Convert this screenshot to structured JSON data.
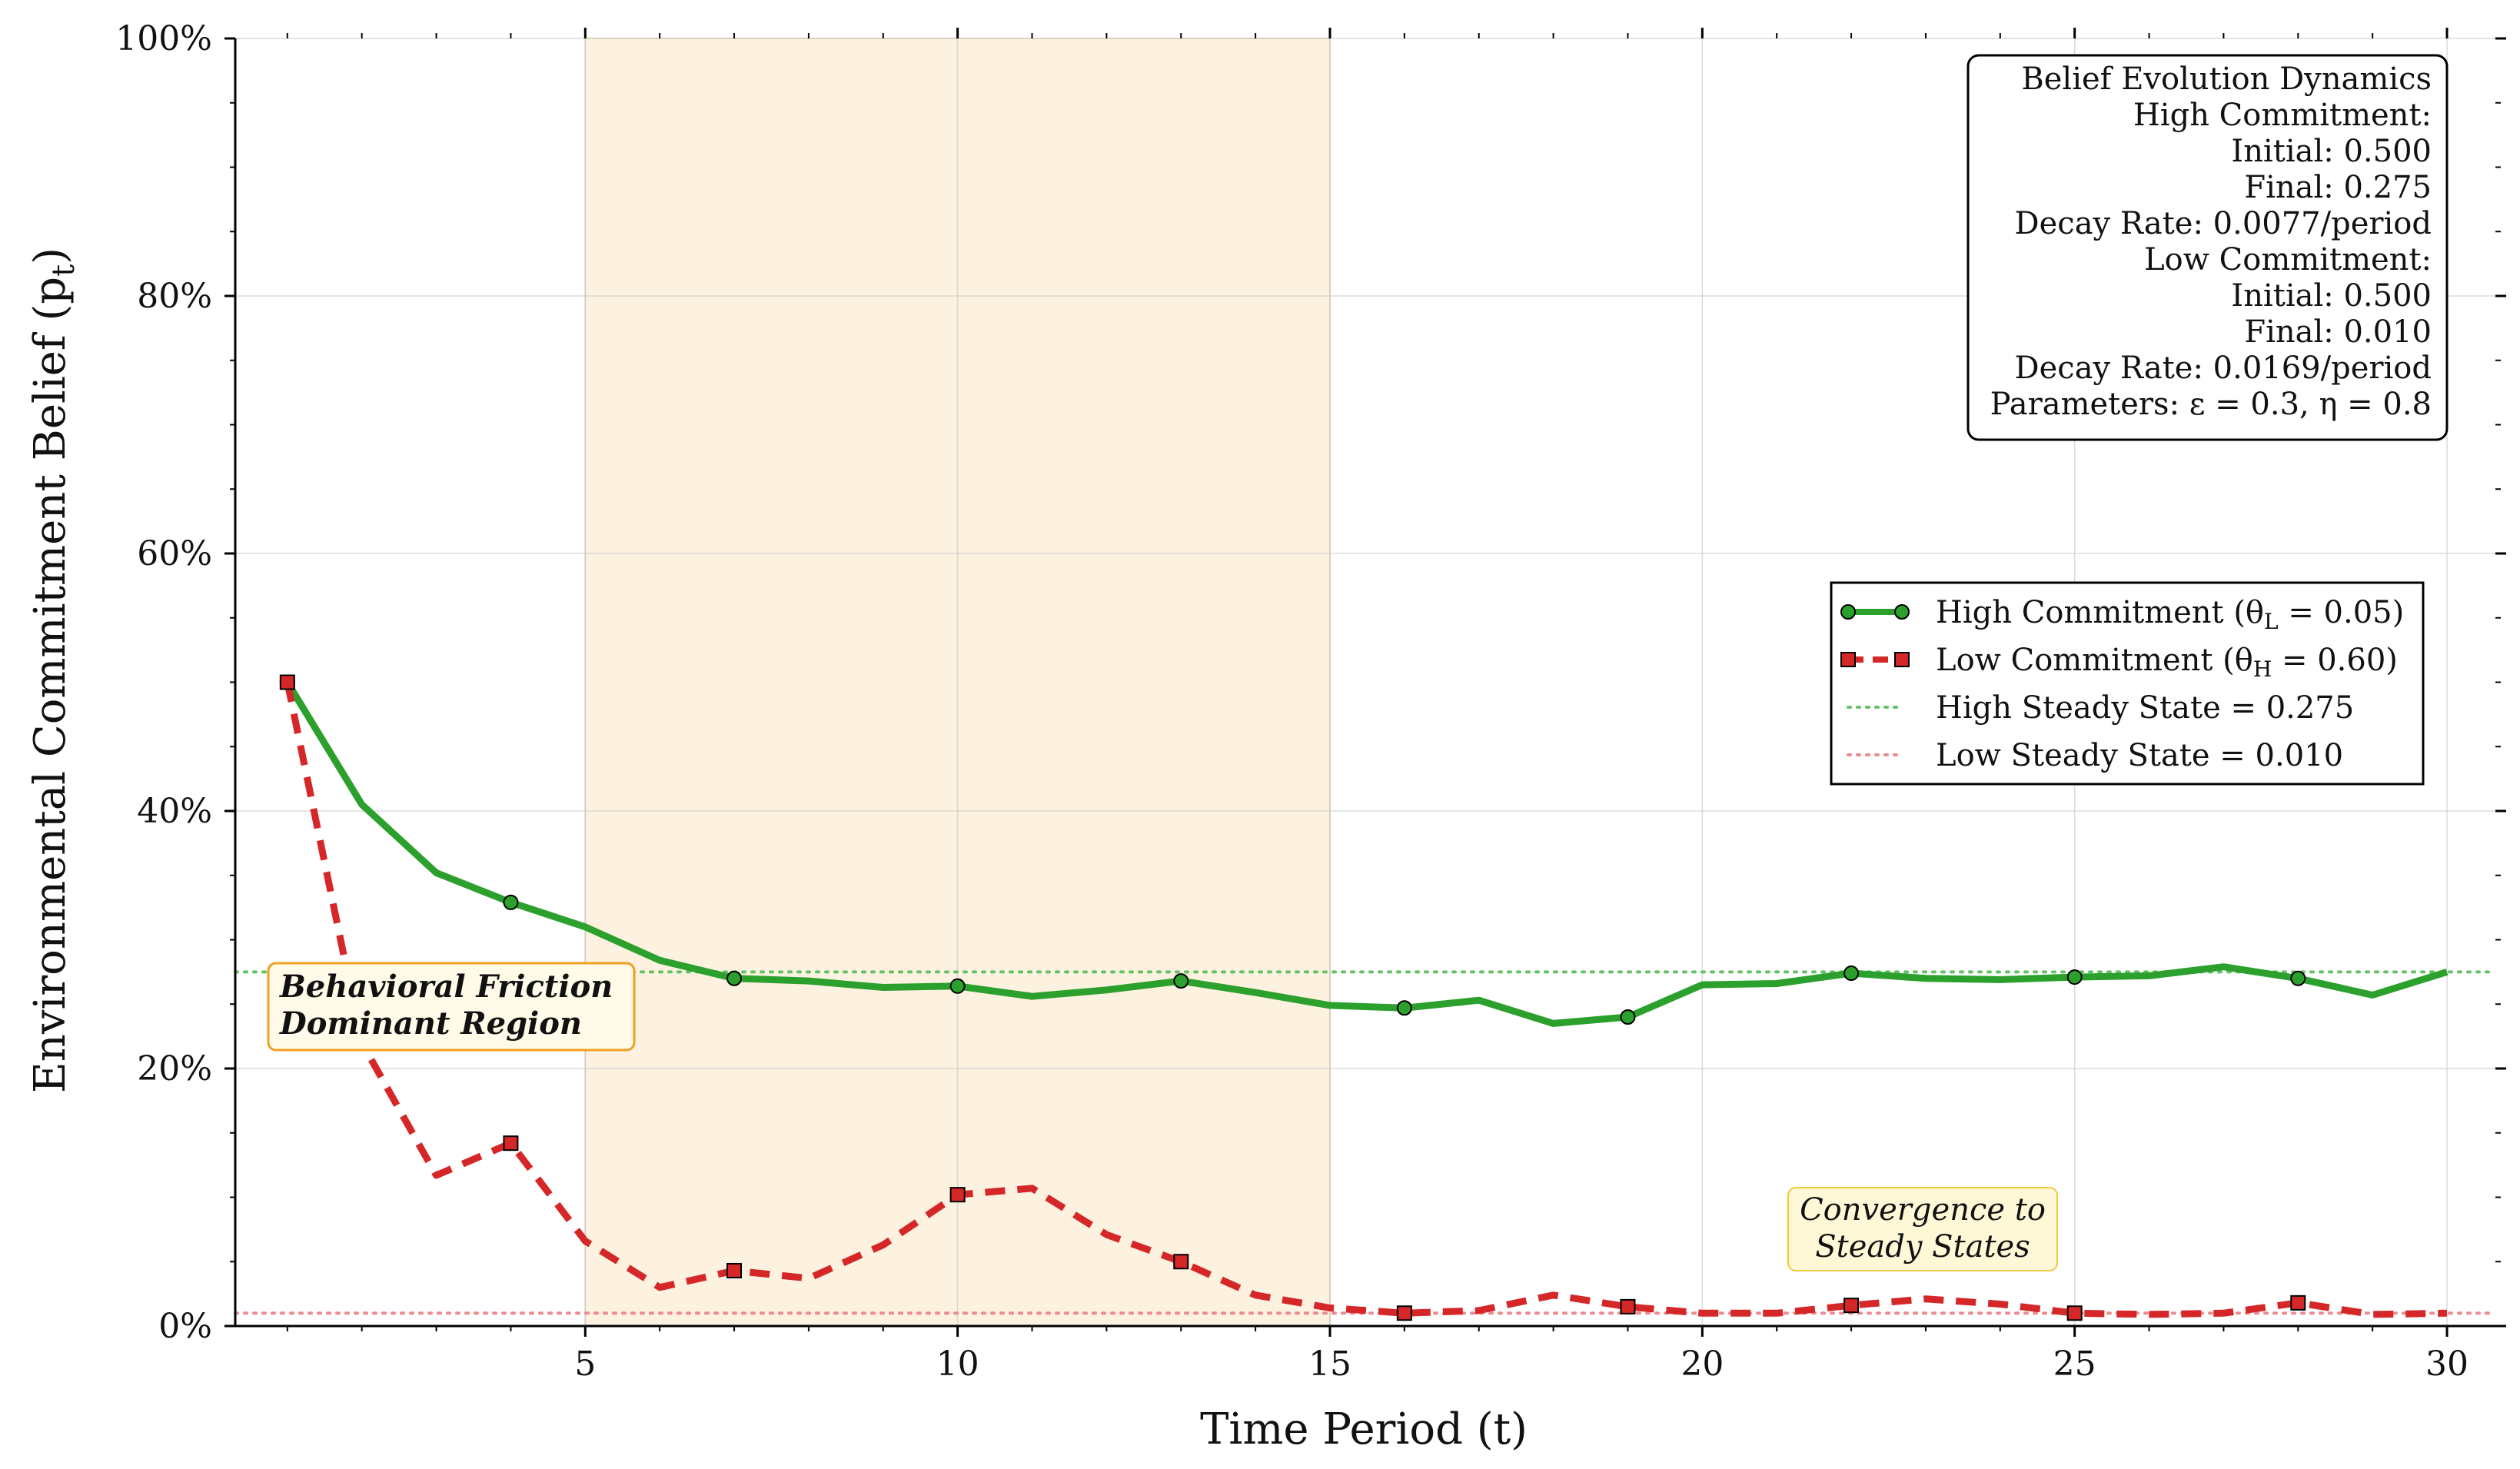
{
  "chart_data": {
    "type": "line",
    "xlabel": "Time Period (t)",
    "ylabel": "Environmental Commitment Belief (p",
    "ylabel_sub": "t",
    "ylabel_close": ")",
    "xlim": [
      0.3,
      30.65
    ],
    "ylim": [
      0,
      1
    ],
    "x_ticks": [
      5,
      10,
      15,
      20,
      25,
      30
    ],
    "y_ticks": [
      0,
      0.2,
      0.4,
      0.6,
      0.8,
      1.0
    ],
    "y_tick_labels": [
      "0%",
      "20%",
      "40%",
      "60%",
      "80%",
      "100%"
    ],
    "grid": true,
    "shaded_region": {
      "x_start": 5,
      "x_end": 15,
      "color": "#fdf1e0"
    },
    "x": [
      1,
      2,
      3,
      4,
      5,
      6,
      7,
      8,
      9,
      10,
      11,
      12,
      13,
      14,
      15,
      16,
      17,
      18,
      19,
      20,
      21,
      22,
      23,
      24,
      25,
      26,
      27,
      28,
      29,
      30
    ],
    "series": [
      {
        "name": "High Commitment",
        "label_sub": "L",
        "label_value": "0.05",
        "color": "#2ca02c",
        "style": "solid",
        "marker": "circle",
        "marker_every": 3,
        "values": [
          0.5,
          0.405,
          0.352,
          0.329,
          0.31,
          0.284,
          0.27,
          0.268,
          0.263,
          0.264,
          0.256,
          0.261,
          0.268,
          0.259,
          0.249,
          0.247,
          0.253,
          0.235,
          0.24,
          0.265,
          0.266,
          0.274,
          0.27,
          0.269,
          0.271,
          0.272,
          0.279,
          0.27,
          0.257,
          0.275
        ]
      },
      {
        "name": "Low Commitment",
        "label_sub": "H",
        "label_value": "0.60",
        "color": "#d62728",
        "style": "dashed",
        "marker": "square",
        "marker_every": 3,
        "values": [
          0.5,
          0.22,
          0.117,
          0.142,
          0.066,
          0.03,
          0.043,
          0.037,
          0.063,
          0.102,
          0.107,
          0.071,
          0.05,
          0.024,
          0.014,
          0.01,
          0.012,
          0.024,
          0.015,
          0.01,
          0.01,
          0.016,
          0.021,
          0.017,
          0.01,
          0.009,
          0.01,
          0.018,
          0.009,
          0.01
        ]
      }
    ],
    "reference_lines": [
      {
        "name": "High Steady State = 0.275",
        "y": 0.275,
        "color": "#66c266"
      },
      {
        "name": "Low Steady State = 0.010",
        "y": 0.01,
        "color": "#ec8a8f"
      }
    ],
    "info_box": {
      "lines": [
        "Belief Evolution Dynamics",
        "High Commitment:",
        "Initial: 0.500",
        "Final: 0.275",
        "Decay Rate: 0.0077/period",
        "Low Commitment:",
        "Initial: 0.500",
        "Final: 0.010",
        "Decay Rate: 0.0169/period",
        "Parameters: ε = 0.3, η = 0.8"
      ]
    },
    "annotations": [
      {
        "text_lines": [
          "Behavioral Friction",
          "Dominant Region"
        ],
        "style": "bold-italic"
      },
      {
        "text_lines": [
          "Convergence to",
          "Steady States"
        ],
        "style": "italic"
      }
    ],
    "legend": {
      "placement": "right",
      "theta_prefix": "θ",
      "equals": " = "
    }
  }
}
